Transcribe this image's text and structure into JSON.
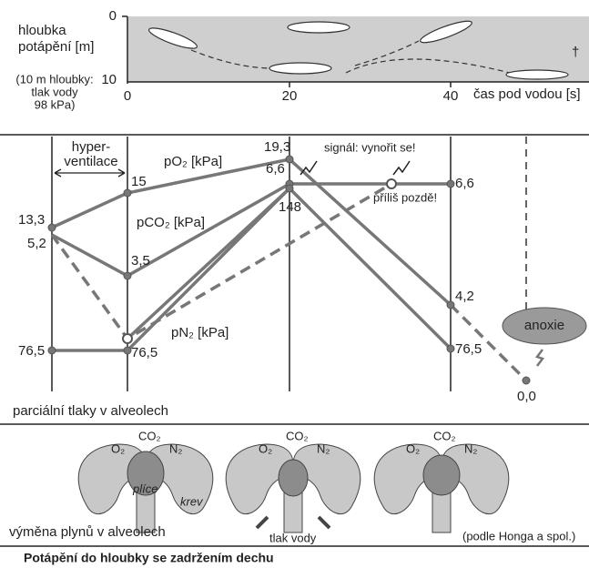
{
  "top": {
    "depth_label": [
      "hloubka",
      "potápění [m]"
    ],
    "depth_note": [
      "(10 m hloubky:",
      "tlak vody",
      "98 kPa)"
    ],
    "y_ticks": [
      "0",
      "10"
    ],
    "x_ticks": [
      "0",
      "20",
      "40"
    ],
    "x_label": "čas pod vodou [s]",
    "death_mark": "†"
  },
  "middle": {
    "hyperventilation": [
      "hyper-",
      "ventilace"
    ],
    "series": {
      "po2": "pO₂ [kPa]",
      "pco2": "pCO₂ [kPa]",
      "pn2": "pN₂ [kPa]"
    },
    "values": {
      "po2": [
        "13,3",
        "15",
        "19,3",
        "4,2",
        "0,0"
      ],
      "pco2": [
        "5,2",
        "3,5",
        "6,6",
        "6,6"
      ],
      "pn2": [
        "76,5",
        "76,5",
        "148",
        "76,5"
      ]
    },
    "signal": "signál: vynořit se!",
    "too_late": "příliš pozdě!",
    "anoxia": "anoxie",
    "footer": "parciální tlaky v alveolech"
  },
  "bottom": {
    "o2": "O₂",
    "co2": "CO₂",
    "n2": "N₂",
    "lungs": "plíce",
    "blood": "krev",
    "water_pressure": "tlak vody",
    "footer": "výměna plynů v alveolech",
    "source": "(podle Honga a spol.)"
  },
  "caption": "Potápění do hloubky se zadržením dechu"
}
